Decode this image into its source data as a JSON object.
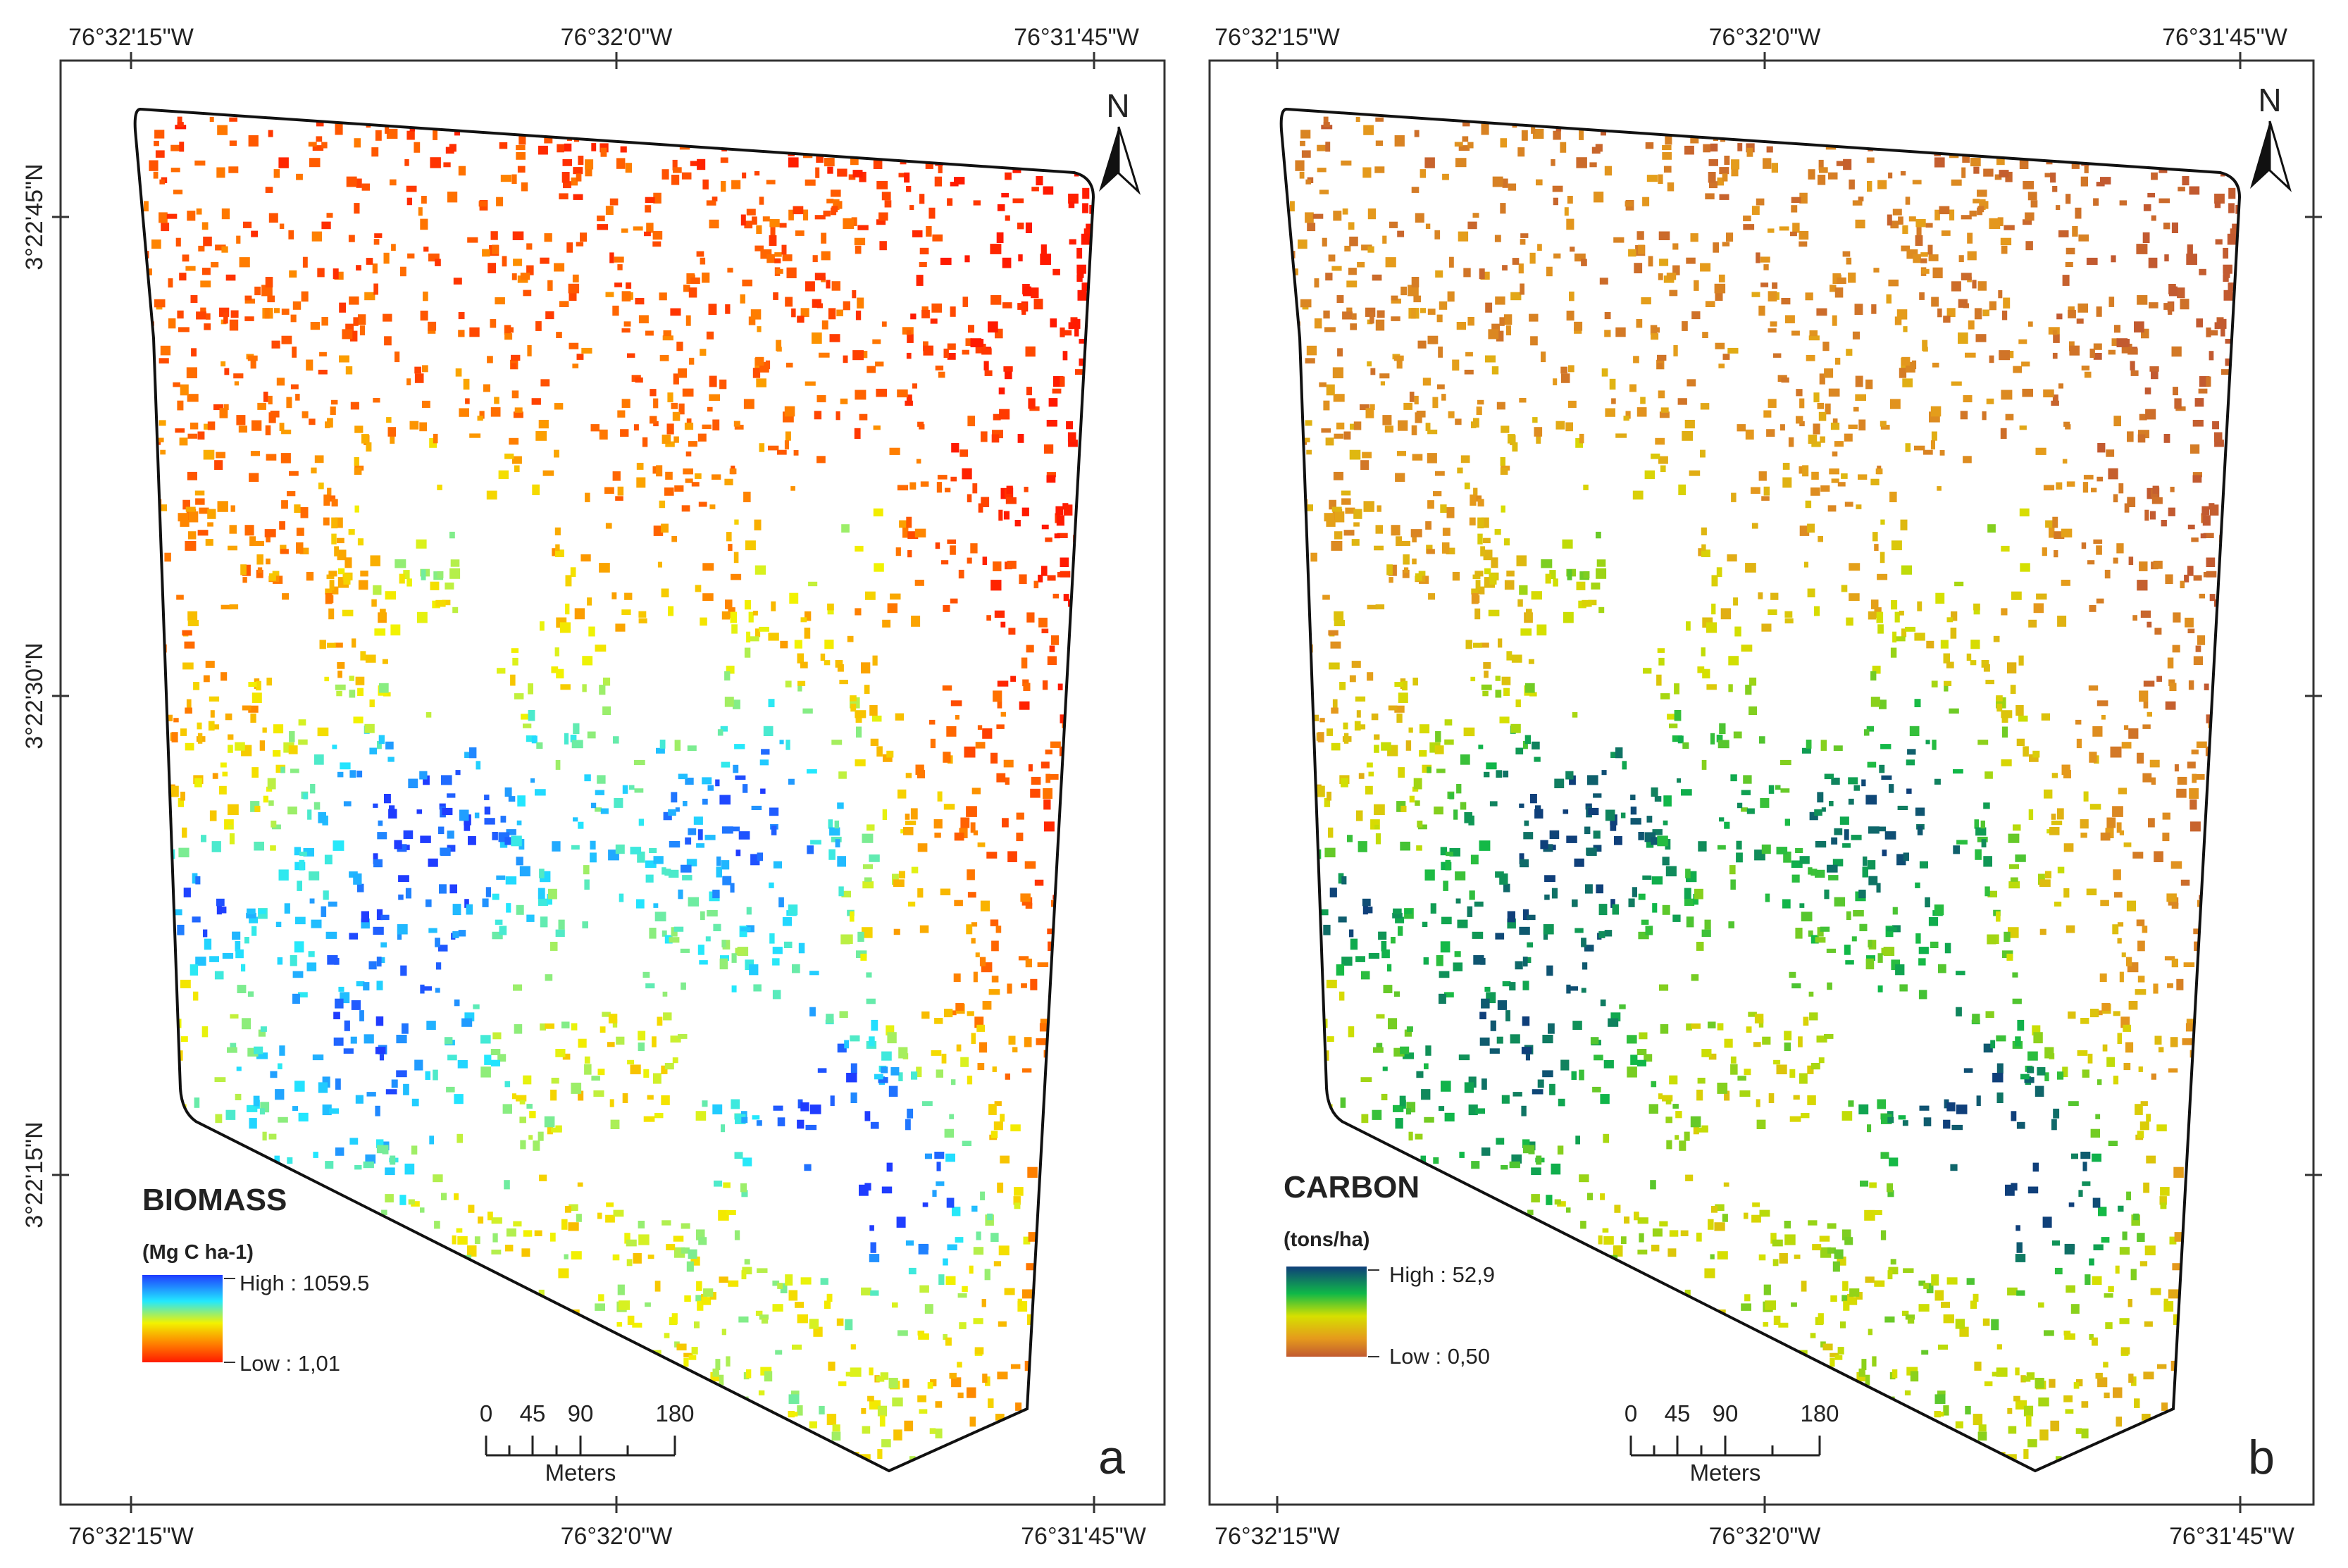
{
  "panels": [
    {
      "id": "a",
      "letter": "a",
      "top_labels": [
        "76°32'15\"W",
        "76°32'0\"W",
        "76°31'45\"W"
      ],
      "bottom_labels": [
        "76°32'15\"W",
        "76°32'0\"W",
        "76°31'45\"W"
      ],
      "left_labels": [
        "3°22'45\"N",
        "3°22'30\"N",
        "3°22'15\"N"
      ],
      "legend": {
        "title": "BIOMASS",
        "unit": "(Mg C ha-1)",
        "high": "High : 1059.5",
        "low": "Low : 1,01",
        "ramp": [
          "#1f3cff",
          "#22e8ff",
          "#f2f200",
          "#ff7a00",
          "#ff1a00"
        ]
      },
      "scale": {
        "ticks": [
          "0",
          "45",
          "90",
          "180"
        ],
        "unit": "Meters"
      },
      "north": "N"
    },
    {
      "id": "b",
      "letter": "b",
      "top_labels": [
        "76°32'15\"W",
        "76°32'0\"W",
        "76°31'45\"W"
      ],
      "bottom_labels": [
        "76°32'15\"W",
        "76°32'0\"W",
        "76°31'45\"W"
      ],
      "legend": {
        "title": "CARBON",
        "unit": "(tons/ha)",
        "high": "High : 52,9",
        "low": "Low : 0,50",
        "ramp": [
          "#0f3f7a",
          "#10b848",
          "#d6e000",
          "#e59a1c",
          "#c25a30"
        ]
      },
      "scale": {
        "ticks": [
          "0",
          "45",
          "90",
          "180"
        ],
        "unit": "Meters"
      },
      "north": "N"
    }
  ]
}
